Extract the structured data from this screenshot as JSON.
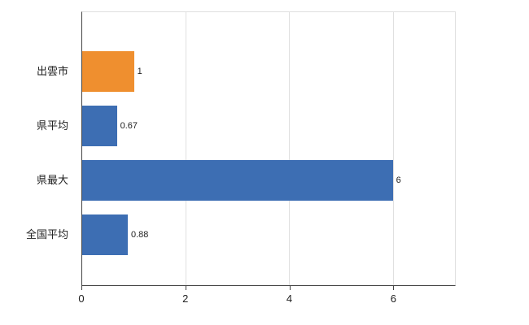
{
  "chart_data": {
    "type": "bar",
    "orientation": "horizontal",
    "title": "",
    "xlabel": "",
    "ylabel": "",
    "categories": [
      "出雲市",
      "県平均",
      "県最大",
      "全国平均"
    ],
    "values": [
      1,
      0.67,
      6,
      0.88
    ],
    "value_labels": [
      "1",
      "0.67",
      "6",
      "0.88"
    ],
    "bar_colors": [
      "#ef8f2f",
      "#3d6eb3",
      "#3d6eb3",
      "#3d6eb3"
    ],
    "xlim": [
      0,
      7.2
    ],
    "xticks": [
      0,
      2,
      4,
      6
    ],
    "grid": true,
    "legend": "none"
  },
  "colors": {
    "axis": "#444444",
    "gridline": "#e0e0e0",
    "text": "#222222",
    "background": "#ffffff"
  }
}
